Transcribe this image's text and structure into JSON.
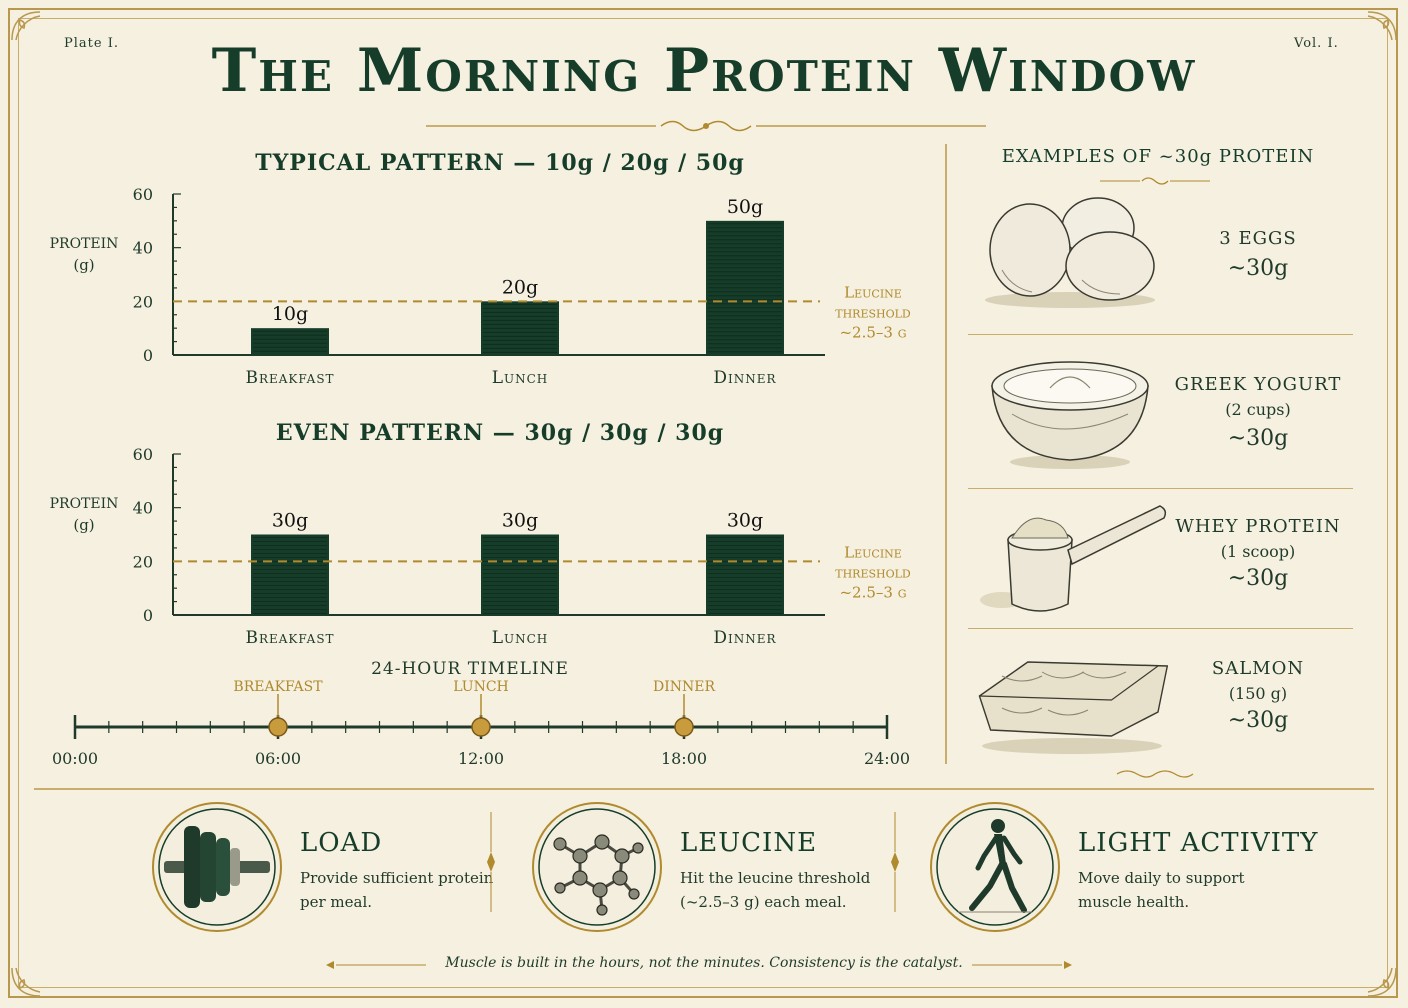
{
  "header": {
    "plate": "Plate I.",
    "vol": "Vol. I.",
    "title": "The Morning Protein Window"
  },
  "chart_data": [
    {
      "type": "bar",
      "title": "TYPICAL PATTERN — 10g / 20g / 50g",
      "ylabel": "PROTEIN (g)",
      "ylabel_lines": [
        "PROTEIN",
        "(g)"
      ],
      "yticks": [
        0,
        20,
        40,
        60
      ],
      "ylim": [
        0,
        60
      ],
      "categories": [
        "Breakfast",
        "Lunch",
        "Dinner"
      ],
      "values": [
        10,
        20,
        50
      ],
      "labels": [
        "10g",
        "20g",
        "50g"
      ],
      "reference_line": {
        "value": 20,
        "label_lines": [
          "Leucine",
          "threshold",
          "~2.5–3 g"
        ]
      },
      "colors": {
        "bar": "#153d2a",
        "threshold": "#b08a2e"
      }
    },
    {
      "type": "bar",
      "title": "EVEN PATTERN — 30g / 30g / 30g",
      "ylabel": "PROTEIN (g)",
      "ylabel_lines": [
        "PROTEIN",
        "(g)"
      ],
      "yticks": [
        0,
        20,
        40,
        60
      ],
      "ylim": [
        0,
        60
      ],
      "categories": [
        "Breakfast",
        "Lunch",
        "Dinner"
      ],
      "values": [
        30,
        30,
        30
      ],
      "labels": [
        "30g",
        "30g",
        "30g"
      ],
      "reference_line": {
        "value": 20,
        "label_lines": [
          "Leucine",
          "threshold",
          "~2.5–3 g"
        ]
      },
      "colors": {
        "bar": "#153d2a",
        "threshold": "#b08a2e"
      }
    }
  ],
  "timeline": {
    "title": "24-HOUR TIMELINE",
    "ticks": [
      "00:00",
      "06:00",
      "12:00",
      "18:00",
      "24:00"
    ],
    "tick_hours": [
      0,
      6,
      12,
      18,
      24
    ],
    "meals": [
      {
        "label": "BREAKFAST",
        "hour": 6
      },
      {
        "label": "LUNCH",
        "hour": 12
      },
      {
        "label": "DINNER",
        "hour": 18
      }
    ]
  },
  "examples": {
    "title": "EXAMPLES OF ~30g PROTEIN",
    "items": [
      {
        "name": "3 EGGS",
        "sub": "",
        "amount": "~30g",
        "icon": "eggs-icon"
      },
      {
        "name": "GREEK YOGURT",
        "sub": "(2 cups)",
        "amount": "~30g",
        "icon": "yogurt-bowl-icon"
      },
      {
        "name": "WHEY PROTEIN",
        "sub": "(1 scoop)",
        "amount": "~30g",
        "icon": "whey-scoop-icon"
      },
      {
        "name": "SALMON",
        "sub": "(150 g)",
        "amount": "~30g",
        "icon": "salmon-icon"
      }
    ]
  },
  "pillars": [
    {
      "title": "LOAD",
      "text": "Provide sufficient protein per meal.",
      "icon": "weight-plates-icon"
    },
    {
      "title": "LEUCINE",
      "text": "Hit the leucine threshold (~2.5–3 g) each meal.",
      "icon": "molecule-icon"
    },
    {
      "title": "LIGHT ACTIVITY",
      "text": "Move daily to support muscle health.",
      "icon": "walking-man-icon"
    }
  ],
  "footer": "Muscle is built in the hours, not the minutes. Consistency is the catalyst.",
  "colors": {
    "background": "#f5f0df",
    "green": "#153d2a",
    "gold": "#b08a2e"
  }
}
